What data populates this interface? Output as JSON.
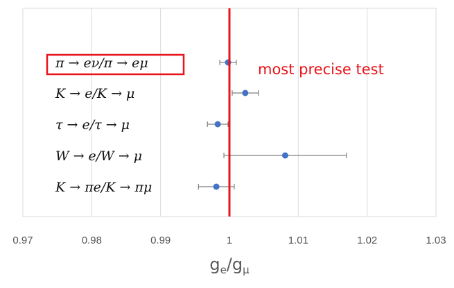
{
  "chart_data": {
    "type": "scatter",
    "orientation": "horizontal-error-bars",
    "xlabel": {
      "base": "g",
      "sub1": "e",
      "sep": "/",
      "base2": "g",
      "sub2": "μ"
    },
    "x_ticks": [
      "0.97",
      "0.98",
      "0.99",
      "1",
      "1.01",
      "1.02",
      "1.03"
    ],
    "xlim": [
      0.97,
      1.03
    ],
    "grid": "vertical",
    "categories": [
      "π → eν/π → eμ",
      "K → e/K → μ",
      "τ → e/τ → μ",
      "W → e/W → μ",
      "K → πe/K → πμ"
    ],
    "values": [
      0.9998,
      1.0023,
      0.9983,
      1.0081,
      0.9981
    ],
    "errors": [
      0.0012,
      0.0019,
      0.0015,
      0.0089,
      0.0026
    ],
    "reference_line": 1.0,
    "highlighted_category": "π → eν/π → eμ",
    "annotation": "most precise test",
    "colors": {
      "marker": "#4472C4",
      "error_bar": "#7f7f7f",
      "reference": "#e8141b",
      "annotation": "#e8141b",
      "grid": "#d9d9d9"
    }
  }
}
